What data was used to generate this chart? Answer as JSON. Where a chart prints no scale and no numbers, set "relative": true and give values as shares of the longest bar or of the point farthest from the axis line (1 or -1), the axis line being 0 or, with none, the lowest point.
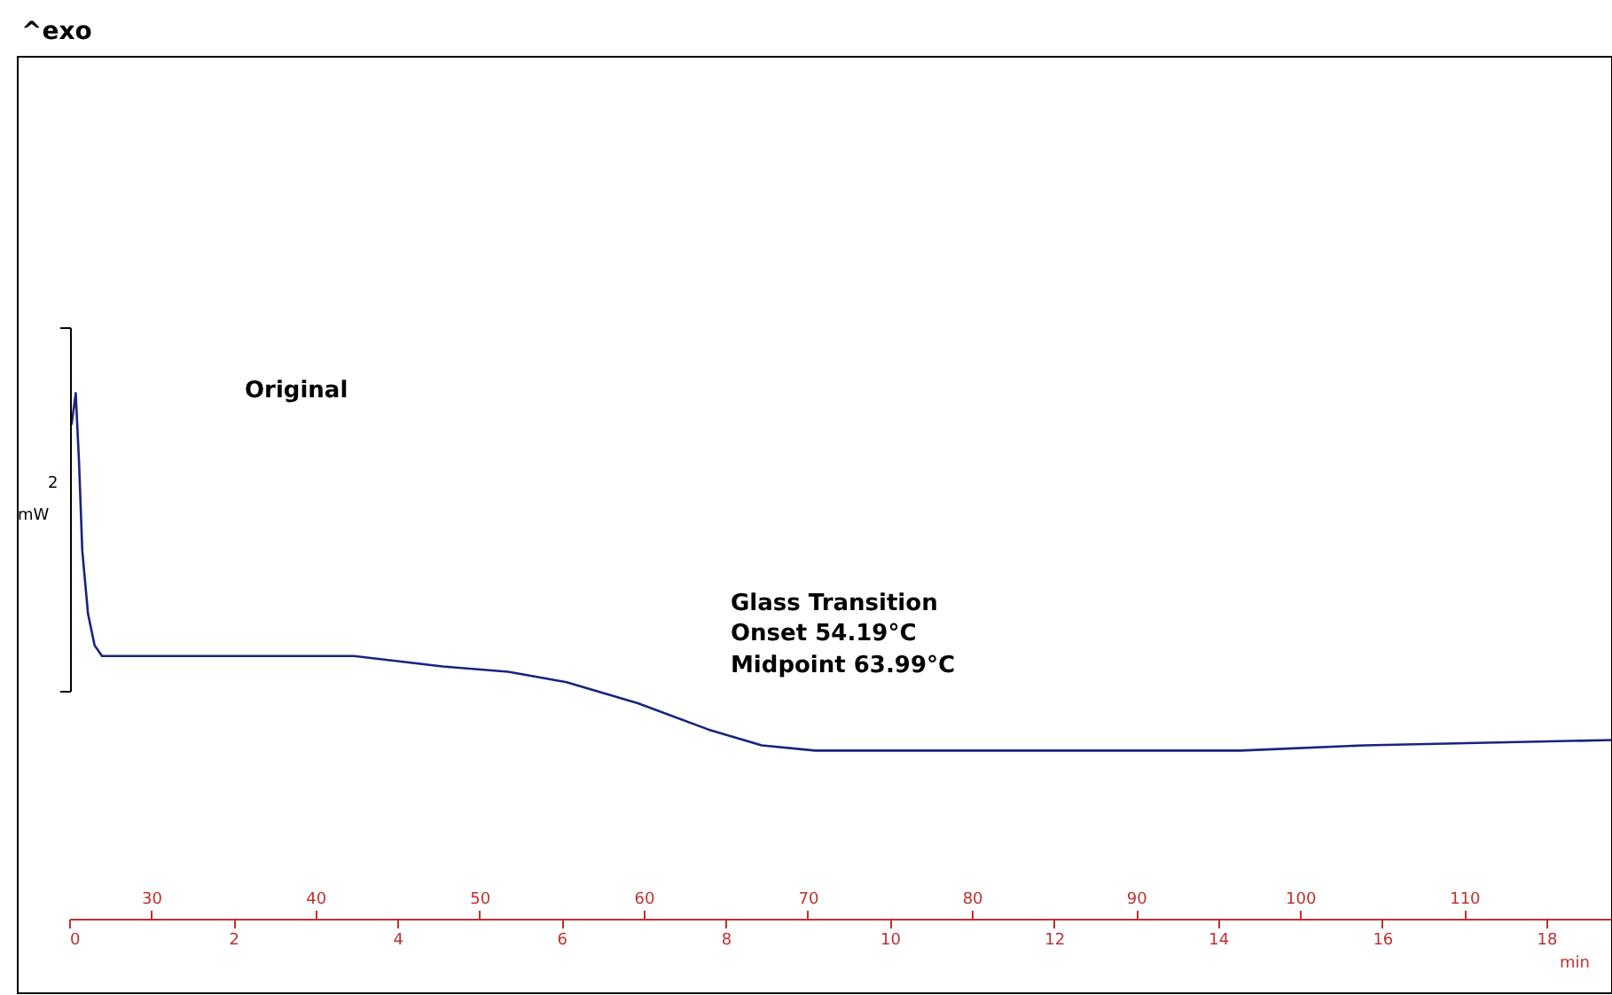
{
  "chart_data": {
    "type": "line",
    "relative": true,
    "xlabel": "min",
    "annotations": [
      "^exo",
      "Original",
      "2",
      "mW",
      "Glass Transition",
      "Onset      54.19°C",
      "Midpoint  63.99°C"
    ],
    "x": [
      0.03,
      0.08,
      0.12,
      0.16,
      0.23,
      0.31,
      0.4,
      0.55,
      2.06,
      3.47,
      4.55,
      5.35,
      6.06,
      6.93,
      7.79,
      8.44,
      9.09,
      10.82,
      12.12,
      14.28,
      15.79,
      18.8
    ],
    "series": [
      {
        "color": "#1a237e",
        "values": [
          0.94,
          1.0,
          0.87,
          0.7,
          0.58,
          0.52,
          0.5,
          0.5,
          0.5,
          0.5,
          0.48,
          0.47,
          0.45,
          0.41,
          0.36,
          0.33,
          0.32,
          0.32,
          0.32,
          0.32,
          0.33,
          0.34
        ]
      }
    ],
    "xlim": [
      0,
      18.8
    ],
    "xticks": [
      0,
      2,
      4,
      6,
      8,
      10,
      12,
      14,
      16,
      18
    ],
    "x2lim": [
      25,
      119
    ],
    "x2ticks": [
      30,
      40,
      50,
      60,
      70,
      80,
      90,
      100,
      110
    ],
    "grid": false,
    "marker": "none",
    "line_style": "solid"
  }
}
